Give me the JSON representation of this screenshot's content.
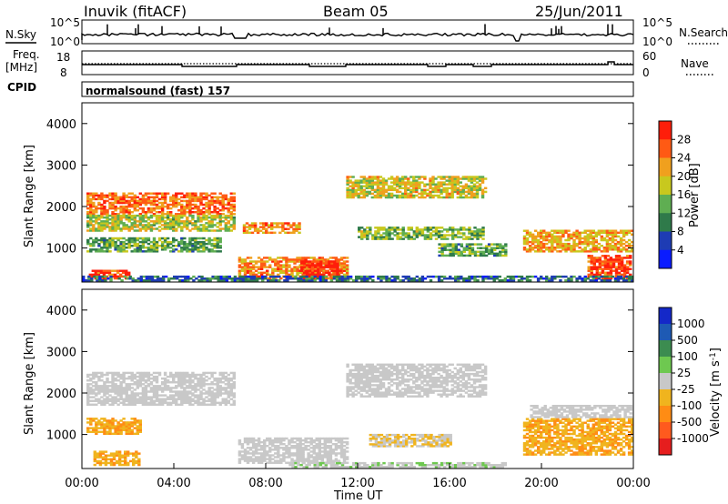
{
  "header": {
    "station": "Inuvik (fitACF)",
    "beam": "Beam 05",
    "date": "25/Jun/2011"
  },
  "noise_panel": {
    "left_label": "N.Sky",
    "right_label": "N.Search",
    "left_ticks": [
      "10^5",
      "10^0"
    ],
    "right_ticks": [
      "10^5",
      "10^0"
    ]
  },
  "freq_panel": {
    "left_label_1": "Freq.",
    "left_label_2": "[MHz]",
    "left_ticks": [
      "18",
      "8"
    ],
    "right_label": "Nave",
    "right_ticks": [
      "60",
      "0"
    ]
  },
  "cpid": {
    "label": "CPID",
    "program": "normalsound (fast) 157"
  },
  "x_axis": {
    "label": "Time UT",
    "ticks": [
      "00:00",
      "04:00",
      "08:00",
      "12:00",
      "16:00",
      "20:00",
      "00:00"
    ]
  },
  "colors": {
    "power": [
      "#0a1cff",
      "#1e3cb4",
      "#2f7a4a",
      "#5fae52",
      "#c8c81e",
      "#f0a01e",
      "#ff5a14",
      "#ff1e0a"
    ],
    "velocity": [
      "#e61e1e",
      "#ff5a1e",
      "#ff8c14",
      "#f0b41e",
      "#c8c8c8",
      "#6ec850",
      "#3c8c50",
      "#1e5ab4",
      "#1428c8"
    ]
  },
  "chart_data": [
    {
      "type": "heatmap",
      "title": "",
      "xlabel": "Time UT",
      "ylabel": "Slant Range [km]",
      "xlim": [
        0,
        24
      ],
      "ylim": [
        180,
        4500
      ],
      "yticks": [
        "1000",
        "2000",
        "3000",
        "4000"
      ],
      "colorbar": {
        "label": "Power [dB]",
        "ticks": [
          "28",
          "24",
          "20",
          "16",
          "12",
          "8",
          "4"
        ],
        "range": [
          0,
          30
        ]
      },
      "bands": [
        {
          "t0": 0.2,
          "t1": 6.6,
          "r0": 1800,
          "r1": 2300,
          "level": 24
        },
        {
          "t0": 0.2,
          "t1": 6.6,
          "r0": 1400,
          "r1": 1800,
          "level": 16
        },
        {
          "t0": 0.2,
          "t1": 6.0,
          "r0": 900,
          "r1": 1250,
          "level": 12
        },
        {
          "t0": 0.3,
          "t1": 2.0,
          "r0": 250,
          "r1": 450,
          "level": 26
        },
        {
          "t0": 6.8,
          "t1": 11.5,
          "r0": 250,
          "r1": 750,
          "level": 22
        },
        {
          "t0": 9.5,
          "t1": 11.2,
          "r0": 250,
          "r1": 700,
          "level": 28
        },
        {
          "t0": 7.0,
          "t1": 9.5,
          "r0": 1350,
          "r1": 1600,
          "level": 22
        },
        {
          "t0": 11.5,
          "t1": 17.5,
          "r0": 2200,
          "r1": 2700,
          "level": 18
        },
        {
          "t0": 12.0,
          "t1": 17.5,
          "r0": 1200,
          "r1": 1500,
          "level": 14
        },
        {
          "t0": 15.5,
          "t1": 18.5,
          "r0": 800,
          "r1": 1100,
          "level": 12
        },
        {
          "t0": 19.2,
          "t1": 23.9,
          "r0": 900,
          "r1": 1400,
          "level": 20
        },
        {
          "t0": 22.0,
          "t1": 23.9,
          "r0": 250,
          "r1": 800,
          "level": 26
        },
        {
          "t0": 0.0,
          "t1": 23.9,
          "r0": 200,
          "r1": 300,
          "level": 8
        }
      ]
    },
    {
      "type": "heatmap",
      "title": "",
      "xlabel": "Time UT",
      "ylabel": "Slant Range [km]",
      "xlim": [
        0,
        24
      ],
      "ylim": [
        180,
        4500
      ],
      "yticks": [
        "1000",
        "2000",
        "3000",
        "4000"
      ],
      "colorbar": {
        "label": "Velocity [m s-1]",
        "ticks": [
          "1000",
          "500",
          "100",
          "25",
          "-25",
          "-100",
          "-500",
          "-1000"
        ],
        "range": [
          -1000,
          1000
        ]
      },
      "bands": [
        {
          "t0": 0.2,
          "t1": 6.6,
          "r0": 1700,
          "r1": 2500,
          "level": 0
        },
        {
          "t0": 0.2,
          "t1": 2.5,
          "r0": 1000,
          "r1": 1400,
          "level": -300
        },
        {
          "t0": 0.5,
          "t1": 2.5,
          "r0": 250,
          "r1": 600,
          "level": -300
        },
        {
          "t0": 6.8,
          "t1": 11.5,
          "r0": 300,
          "r1": 900,
          "level": 0
        },
        {
          "t0": 11.5,
          "t1": 17.5,
          "r0": 1900,
          "r1": 2700,
          "level": 0
        },
        {
          "t0": 12.5,
          "t1": 16.0,
          "r0": 700,
          "r1": 1000,
          "level": -100
        },
        {
          "t0": 9.0,
          "t1": 18.5,
          "r0": 200,
          "r1": 300,
          "level": 60
        },
        {
          "t0": 19.2,
          "t1": 23.9,
          "r0": 500,
          "r1": 1400,
          "level": -300
        },
        {
          "t0": 19.5,
          "t1": 23.9,
          "r0": 1400,
          "r1": 1700,
          "level": 0
        }
      ]
    }
  ]
}
